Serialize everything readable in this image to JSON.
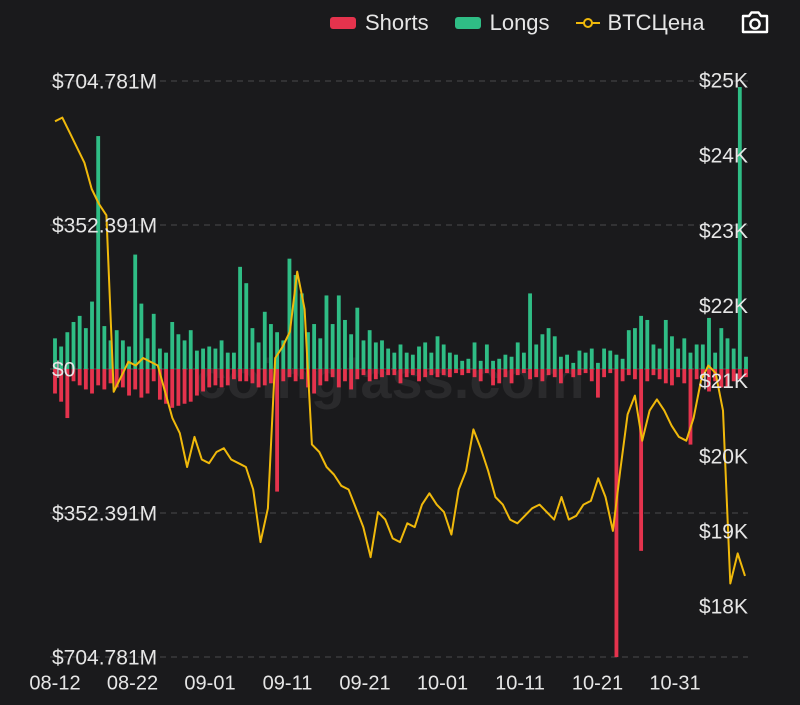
{
  "legend": {
    "shorts_label": "Shorts",
    "longs_label": "Longs",
    "price_label": "BTCЦена"
  },
  "icons": {
    "camera": "camera-icon"
  },
  "colors": {
    "background": "#1a1a1c",
    "shorts": "#e5334d",
    "longs": "#2fbd85",
    "price": "#f0b90b",
    "grid": "#4a4a4c",
    "text": "#e6e6e6"
  },
  "watermark": "coinglass.com",
  "chart_data": {
    "type": "bar",
    "grid": true,
    "legend_position": "top-right",
    "x_tick_labels": [
      "08-12",
      "08-22",
      "09-01",
      "09-11",
      "09-21",
      "10-01",
      "10-11",
      "10-21",
      "10-31"
    ],
    "left_axis": {
      "tick_labels": [
        "$704.781M",
        "$352.391M",
        "$0",
        "$352.391M",
        "$704.781M"
      ],
      "range": [
        -704.781,
        704.781
      ],
      "unit": "USD millions"
    },
    "right_axis": {
      "tick_labels": [
        "$25K",
        "$24K",
        "$23K",
        "$22K",
        "$21K",
        "$20K",
        "$19K",
        "$18K"
      ],
      "range": [
        17.5,
        25
      ],
      "unit": "USD thousands"
    },
    "series": [
      {
        "name": "Longs",
        "values": [
          75,
          55,
          90,
          115,
          130,
          100,
          165,
          570,
          105,
          70,
          95,
          70,
          55,
          280,
          160,
          75,
          135,
          50,
          40,
          115,
          85,
          70,
          95,
          45,
          50,
          55,
          50,
          70,
          40,
          40,
          250,
          210,
          100,
          65,
          140,
          110,
          90,
          70,
          270,
          230,
          185,
          90,
          110,
          75,
          180,
          110,
          180,
          120,
          85,
          150,
          70,
          95,
          65,
          70,
          50,
          40,
          60,
          40,
          35,
          55,
          65,
          40,
          80,
          60,
          40,
          35,
          20,
          25,
          65,
          20,
          60,
          20,
          25,
          35,
          30,
          65,
          40,
          185,
          60,
          85,
          100,
          80,
          30,
          35,
          15,
          45,
          40,
          50,
          15,
          50,
          45,
          35,
          25,
          95,
          100,
          130,
          120,
          60,
          50,
          120,
          80,
          50,
          75,
          40,
          60,
          60,
          125,
          40,
          100,
          75,
          50,
          690,
          30
        ]
      },
      {
        "name": "Shorts",
        "values": [
          -60,
          -80,
          -120,
          -30,
          -40,
          -50,
          -60,
          -40,
          -50,
          -35,
          -45,
          -45,
          -65,
          -50,
          -70,
          -60,
          -30,
          -75,
          -85,
          -95,
          -90,
          -85,
          -80,
          -65,
          -55,
          -45,
          -40,
          -45,
          -40,
          -25,
          -30,
          -30,
          -35,
          -45,
          -40,
          -35,
          -300,
          -30,
          -20,
          -30,
          -25,
          -45,
          -60,
          -40,
          -30,
          -20,
          -45,
          -30,
          -50,
          -25,
          -15,
          -30,
          -25,
          -20,
          -15,
          -15,
          -35,
          -20,
          -15,
          -30,
          -20,
          -15,
          -20,
          -15,
          -20,
          -10,
          -15,
          -10,
          -20,
          -30,
          -10,
          -40,
          -35,
          -20,
          -35,
          -15,
          -10,
          -25,
          -20,
          -30,
          -15,
          -20,
          -35,
          -10,
          -20,
          -15,
          -10,
          -30,
          -70,
          -20,
          -10,
          -705,
          -30,
          -15,
          -25,
          -445,
          -30,
          -15,
          -25,
          -35,
          -40,
          -20,
          -35,
          -185,
          -25,
          -20,
          -55,
          -30,
          -45,
          -45,
          -30,
          -25,
          -20
        ]
      },
      {
        "name": "BTCЦена",
        "axis": "right",
        "values": [
          24.45,
          24.5,
          24.3,
          24.1,
          23.9,
          23.55,
          23.35,
          23.2,
          20.85,
          21.05,
          21.25,
          21.2,
          21.3,
          21.25,
          21.2,
          20.85,
          20.5,
          20.3,
          19.85,
          20.25,
          19.95,
          19.9,
          20.05,
          20.1,
          19.95,
          19.9,
          19.85,
          19.55,
          18.85,
          19.3,
          21.3,
          21.45,
          21.65,
          22.45,
          21.95,
          20.15,
          20.05,
          19.85,
          19.75,
          19.6,
          19.55,
          19.3,
          19.05,
          18.65,
          19.25,
          19.15,
          18.9,
          18.85,
          19.1,
          19.05,
          19.35,
          19.5,
          19.35,
          19.25,
          18.95,
          19.55,
          19.8,
          20.35,
          20.1,
          19.8,
          19.45,
          19.35,
          19.15,
          19.1,
          19.2,
          19.3,
          19.35,
          19.25,
          19.15,
          19.45,
          19.15,
          19.2,
          19.35,
          19.4,
          19.7,
          19.45,
          19.0,
          19.8,
          20.55,
          20.8,
          20.2,
          20.6,
          20.75,
          20.6,
          20.4,
          20.25,
          20.2,
          20.5,
          21.0,
          21.2,
          21.1,
          20.6,
          18.3,
          18.7,
          18.4
        ]
      }
    ]
  }
}
